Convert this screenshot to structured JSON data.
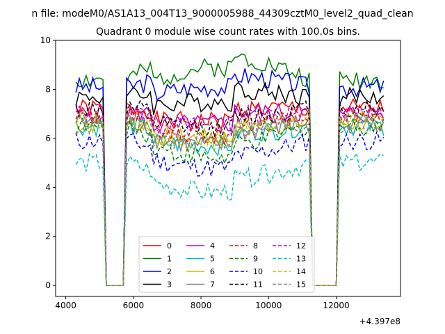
{
  "suptitle": "n file: modeM0/AS1A13_004T13_9000005988_44309cztM0_level2_quad_clean",
  "chart_data": {
    "type": "line",
    "title": "Quadrant 0 module wise count rates with 100.0s bins.",
    "xlabel": "",
    "ylabel": "",
    "x_offset_label": "+4.397e8",
    "xlim": [
      3700,
      13900
    ],
    "ylim": [
      -0.45,
      10.0
    ],
    "xticks": [
      4000,
      6000,
      8000,
      10000,
      12000
    ],
    "xtick_labels": [
      "4000",
      "6000",
      "8000",
      "10000",
      "12000"
    ],
    "yticks": [
      0,
      2,
      4,
      6,
      8,
      10
    ],
    "ytick_labels": [
      "0",
      "2",
      "4",
      "6",
      "8",
      "10"
    ],
    "grid": false,
    "legend": {
      "position": "lower-center",
      "ncol": 4
    },
    "gaps": [
      [
        5200,
        5700
      ],
      [
        11300,
        12000
      ]
    ],
    "segments": [
      [
        4300,
        5100
      ],
      [
        5800,
        11200
      ],
      [
        12100,
        13400
      ]
    ],
    "series": [
      {
        "name": "0",
        "color": "#ff0000",
        "dash": "solid",
        "base": 7.2,
        "hump": 0.0
      },
      {
        "name": "1",
        "color": "#008000",
        "dash": "solid",
        "base": 8.4,
        "hump": 1.0
      },
      {
        "name": "2",
        "color": "#0000ff",
        "dash": "solid",
        "base": 8.1,
        "hump": 0.5
      },
      {
        "name": "3",
        "color": "#000000",
        "dash": "solid",
        "base": 7.7,
        "hump": 0.3
      },
      {
        "name": "4",
        "color": "#bf00bf",
        "dash": "solid",
        "base": 7.0,
        "hump": 0.1
      },
      {
        "name": "5",
        "color": "#00bfbf",
        "dash": "solid",
        "base": 6.5,
        "hump": -0.3
      },
      {
        "name": "6",
        "color": "#bfbf00",
        "dash": "solid",
        "base": 6.6,
        "hump": -0.1
      },
      {
        "name": "7",
        "color": "#808080",
        "dash": "solid",
        "base": 6.7,
        "hump": -0.5
      },
      {
        "name": "8",
        "color": "#ff0000",
        "dash": "dashed",
        "base": 7.0,
        "hump": -0.4
      },
      {
        "name": "9",
        "color": "#008000",
        "dash": "dashed",
        "base": 6.5,
        "hump": -0.8
      },
      {
        "name": "10",
        "color": "#0000ff",
        "dash": "dashed",
        "base": 5.9,
        "hump": -0.6
      },
      {
        "name": "11",
        "color": "#000000",
        "dash": "dashed",
        "base": 7.2,
        "hump": -0.3
      },
      {
        "name": "12",
        "color": "#bf00bf",
        "dash": "dashed",
        "base": 7.0,
        "hump": 0.0
      },
      {
        "name": "13",
        "color": "#00bfbf",
        "dash": "dashed",
        "base": 5.0,
        "hump": -0.7
      },
      {
        "name": "14",
        "color": "#bfbf00",
        "dash": "dashed",
        "base": 6.8,
        "hump": -0.4
      },
      {
        "name": "15",
        "color": "#808080",
        "dash": "dashed",
        "base": 6.5,
        "hump": -0.1
      }
    ]
  }
}
